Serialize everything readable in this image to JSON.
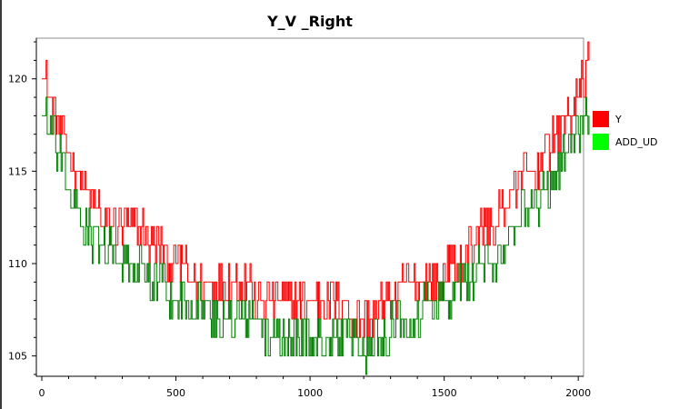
{
  "chart_data": {
    "type": "line",
    "title": "Y_V _Right",
    "xlabel": "",
    "ylabel": "",
    "xlim": [
      0,
      2040
    ],
    "ylim": [
      103.9,
      122.2
    ],
    "xticks": [
      0,
      500,
      1000,
      1500,
      2000
    ],
    "yticks": [
      105,
      110,
      115,
      120
    ],
    "grid": false,
    "legend_position": "right",
    "series": [
      {
        "name": "Y",
        "color": "#ff0000",
        "x": [
          0,
          40,
          80,
          120,
          160,
          200,
          240,
          280,
          320,
          360,
          400,
          440,
          480,
          520,
          560,
          600,
          640,
          680,
          720,
          760,
          800,
          840,
          880,
          920,
          960,
          1000,
          1040,
          1080,
          1120,
          1160,
          1200,
          1240,
          1280,
          1320,
          1360,
          1400,
          1440,
          1480,
          1520,
          1560,
          1600,
          1640,
          1680,
          1720,
          1760,
          1800,
          1840,
          1880,
          1920,
          1960,
          2000,
          2040
        ],
        "values": [
          121,
          118,
          117,
          115,
          114,
          113,
          112,
          112,
          112,
          112,
          111,
          111,
          110,
          110,
          109,
          109,
          109,
          109,
          109,
          109,
          108,
          108,
          108,
          108,
          108,
          108,
          108,
          108,
          108,
          107,
          107,
          107,
          108,
          108,
          109,
          109,
          109,
          109,
          110,
          110,
          111,
          112,
          112,
          113,
          114,
          115,
          115,
          116,
          117,
          118,
          119,
          121
        ]
      },
      {
        "name": "ADD_UD",
        "color": "#008000",
        "x": [
          0,
          40,
          80,
          120,
          160,
          200,
          240,
          280,
          320,
          360,
          400,
          440,
          480,
          520,
          560,
          600,
          640,
          680,
          720,
          760,
          800,
          840,
          880,
          920,
          960,
          1000,
          1040,
          1080,
          1120,
          1160,
          1200,
          1240,
          1280,
          1320,
          1360,
          1400,
          1440,
          1480,
          1520,
          1560,
          1600,
          1640,
          1680,
          1720,
          1760,
          1800,
          1840,
          1880,
          1920,
          1960,
          2000,
          2040
        ],
        "values": [
          118,
          117,
          115,
          113,
          112,
          111,
          111,
          110,
          110,
          110,
          109,
          109,
          108,
          108,
          108,
          108,
          107,
          107,
          107,
          107,
          107,
          106,
          106,
          106,
          106,
          106,
          106,
          106,
          106,
          106,
          105,
          106,
          106,
          107,
          107,
          107,
          108,
          108,
          108,
          109,
          109,
          110,
          110,
          111,
          112,
          113,
          113,
          114,
          115,
          116,
          117,
          118
        ]
      }
    ]
  }
}
